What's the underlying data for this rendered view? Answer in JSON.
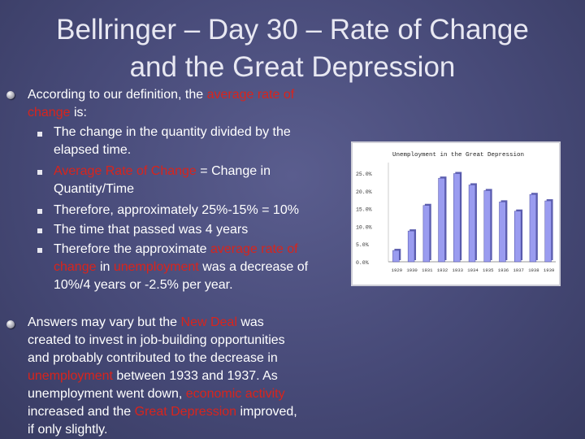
{
  "title": {
    "line1": "Bellringer – Day 30 – Rate of Change",
    "line2": "and the Great Depression"
  },
  "para1": {
    "l1a": "According to our definition, the ",
    "l1b": "average rate of",
    "l2a": "change",
    "l2b": " is:"
  },
  "subs": {
    "s1l1": "The change in the quantity divided by the",
    "s1l2": "elapsed time.",
    "s2l1a": "Average Rate of Change",
    "s2l1b": " = Change in",
    "s2l2": "Quantity/Time",
    "s3": "Therefore, approximately 25%-15% = 10%",
    "s4": "The time that passed was 4 years",
    "s5l1a": "Therefore the approximate ",
    "s5l1b": "average rate of",
    "s5l2a": "change",
    "s5l2b": " in ",
    "s5l2c": "unemployment",
    "s5l2d": " was a decrease of",
    "s5l3": "10%/4 years or -2.5% per year."
  },
  "para2": {
    "l1a": "Answers may vary but the ",
    "l1b": "New Deal",
    "l1c": " was",
    "l2": "created to invest in job-building opportunities",
    "l3": "and probably contributed to the decrease in",
    "l4a": "unemployment",
    "l4b": " between 1933 and 1937. As",
    "l5a": "unemployment went down, ",
    "l5b": "economic activity",
    "l6a": "increased and the ",
    "l6b": "Great Depression",
    "l6c": " improved,",
    "l7": "if only slightly."
  },
  "colors": {
    "accent_red": "#d9241c",
    "background": "#474a78",
    "bar_fill": "#9a9cf0"
  },
  "chart_data": {
    "type": "bar",
    "title": "Unemployment in the Great Depression",
    "categories": [
      "1929",
      "1930",
      "1931",
      "1932",
      "1933",
      "1934",
      "1935",
      "1936",
      "1937",
      "1938",
      "1939"
    ],
    "values": [
      3.2,
      8.7,
      15.9,
      23.6,
      24.9,
      21.7,
      20.1,
      16.9,
      14.3,
      19.0,
      17.2
    ],
    "yticks": [
      "0.0%",
      "5.0%",
      "10.0%",
      "15.0%",
      "20.0%",
      "25.0%"
    ],
    "ylim": [
      0,
      28
    ],
    "xlabel": "",
    "ylabel": "",
    "grid": false
  }
}
